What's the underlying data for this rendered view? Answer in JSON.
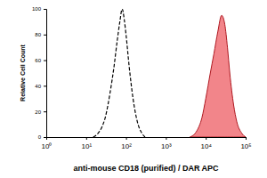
{
  "chart_data": {
    "type": "line",
    "log": "x",
    "xlabel": "anti-mouse CD18 (purified) / DAR APC",
    "ylabel": "Relative Cell Count",
    "xlim": [
      1,
      100000
    ],
    "xticks": [
      {
        "value": 1,
        "label": "10⁰"
      },
      {
        "value": 10,
        "label": "10¹"
      },
      {
        "value": 100,
        "label": "10²"
      },
      {
        "value": 1000,
        "label": "10³"
      },
      {
        "value": 10000,
        "label": "10⁴"
      },
      {
        "value": 100000,
        "label": "10⁵"
      }
    ],
    "ylim": [
      0,
      100
    ],
    "yticks": [
      0,
      20,
      40,
      60,
      80,
      100
    ],
    "series": [
      {
        "type": "line",
        "line_style": "dashed",
        "color": "#000000",
        "x": [
          15,
          20,
          25,
          30,
          40,
          50,
          60,
          70,
          80,
          90,
          100,
          120,
          150,
          200,
          250,
          300
        ],
        "values": [
          0,
          3,
          8,
          15,
          35,
          55,
          75,
          90,
          100,
          92,
          80,
          55,
          30,
          10,
          3,
          0
        ]
      },
      {
        "type": "area",
        "line_style": "solid",
        "color": "#e8202a",
        "x": [
          4000,
          6000,
          8000,
          10000,
          13000,
          16000,
          20000,
          25000,
          30000,
          35000,
          40000,
          50000,
          60000,
          80000,
          100000
        ],
        "values": [
          0,
          5,
          15,
          30,
          50,
          65,
          82,
          95,
          88,
          70,
          50,
          25,
          12,
          3,
          0
        ]
      }
    ]
  }
}
